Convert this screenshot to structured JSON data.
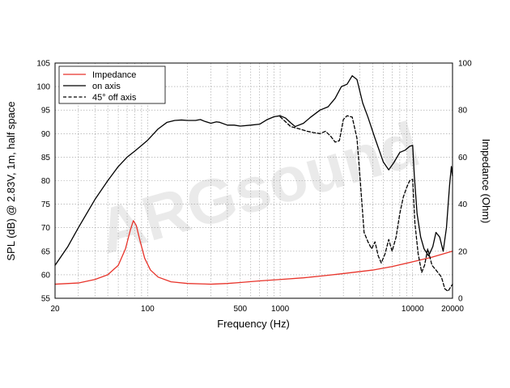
{
  "chart_data": {
    "type": "line",
    "xlabel": "Frequency (Hz)",
    "ylabel_left": "SPL (dB) @ 2.83V, 1m, half space",
    "ylabel_right": "Impedance (Ohm)",
    "xscale": "log",
    "xlim": [
      20,
      20000
    ],
    "ylim_left": [
      55,
      105
    ],
    "ylim_right": [
      0,
      100
    ],
    "x_tick_labels": [
      "20",
      "100",
      "500",
      "1000",
      "10000",
      "20000"
    ],
    "x_tick_values": [
      20,
      100,
      500,
      1000,
      10000,
      20000
    ],
    "y_left_ticks": [
      "55",
      "60",
      "65",
      "70",
      "75",
      "80",
      "85",
      "90",
      "95",
      "100",
      "105"
    ],
    "y_right_ticks": [
      "0",
      "20",
      "40",
      "60",
      "80",
      "100"
    ],
    "grid": true,
    "legend_placement": "top-left",
    "watermark": "ARGsound",
    "series": [
      {
        "name": "Impedance",
        "axis": "right",
        "color": "#e8332a",
        "style": "solid",
        "points": [
          [
            20,
            6
          ],
          [
            30,
            6.5
          ],
          [
            40,
            8
          ],
          [
            50,
            10
          ],
          [
            60,
            14
          ],
          [
            68,
            21
          ],
          [
            74,
            29
          ],
          [
            78,
            33
          ],
          [
            82,
            31
          ],
          [
            88,
            24
          ],
          [
            95,
            17
          ],
          [
            105,
            12
          ],
          [
            120,
            9
          ],
          [
            150,
            7
          ],
          [
            200,
            6.3
          ],
          [
            300,
            6
          ],
          [
            400,
            6.3
          ],
          [
            500,
            6.7
          ],
          [
            700,
            7.4
          ],
          [
            1000,
            8
          ],
          [
            1500,
            8.7
          ],
          [
            2000,
            9.4
          ],
          [
            3000,
            10.5
          ],
          [
            5000,
            12
          ],
          [
            7000,
            13.5
          ],
          [
            10000,
            15.5
          ],
          [
            14000,
            17.5
          ],
          [
            20000,
            20
          ]
        ]
      },
      {
        "name": "on axis",
        "axis": "left",
        "color": "#000000",
        "style": "solid",
        "points": [
          [
            20,
            62
          ],
          [
            25,
            66
          ],
          [
            30,
            70
          ],
          [
            40,
            76
          ],
          [
            50,
            80
          ],
          [
            60,
            83
          ],
          [
            70,
            85
          ],
          [
            80,
            86.3
          ],
          [
            90,
            87.5
          ],
          [
            100,
            88.6
          ],
          [
            120,
            91
          ],
          [
            140,
            92.4
          ],
          [
            160,
            92.8
          ],
          [
            180,
            92.9
          ],
          [
            200,
            92.8
          ],
          [
            230,
            92.8
          ],
          [
            250,
            93
          ],
          [
            270,
            92.6
          ],
          [
            300,
            92.2
          ],
          [
            330,
            92.5
          ],
          [
            350,
            92.4
          ],
          [
            400,
            91.8
          ],
          [
            450,
            91.8
          ],
          [
            500,
            91.6
          ],
          [
            600,
            91.8
          ],
          [
            700,
            92
          ],
          [
            800,
            93
          ],
          [
            900,
            93.6
          ],
          [
            1000,
            93.8
          ],
          [
            1100,
            93.3
          ],
          [
            1200,
            92.3
          ],
          [
            1300,
            91.5
          ],
          [
            1500,
            92.2
          ],
          [
            1700,
            93.5
          ],
          [
            2000,
            95
          ],
          [
            2300,
            95.7
          ],
          [
            2600,
            97.5
          ],
          [
            2900,
            100
          ],
          [
            3200,
            100.5
          ],
          [
            3500,
            102.3
          ],
          [
            3800,
            101.5
          ],
          [
            4200,
            96.5
          ],
          [
            4600,
            93.5
          ],
          [
            5200,
            89
          ],
          [
            6000,
            84
          ],
          [
            6600,
            82.3
          ],
          [
            7200,
            83.8
          ],
          [
            8000,
            86
          ],
          [
            8800,
            86.5
          ],
          [
            9500,
            87.3
          ],
          [
            10000,
            87.5
          ],
          [
            10300,
            81
          ],
          [
            10800,
            73
          ],
          [
            11500,
            68
          ],
          [
            12200,
            65.5
          ],
          [
            13200,
            64
          ],
          [
            14200,
            66
          ],
          [
            15000,
            69
          ],
          [
            16000,
            68
          ],
          [
            17000,
            65
          ],
          [
            18000,
            70
          ],
          [
            19000,
            79
          ],
          [
            19600,
            83
          ],
          [
            20000,
            81
          ]
        ]
      },
      {
        "name": "45° off axis",
        "axis": "left",
        "color": "#000000",
        "style": "dashed",
        "points": [
          [
            1000,
            93.6
          ],
          [
            1100,
            92.5
          ],
          [
            1200,
            91.5
          ],
          [
            1400,
            91
          ],
          [
            1600,
            90.5
          ],
          [
            1800,
            90.2
          ],
          [
            2000,
            90
          ],
          [
            2200,
            90.5
          ],
          [
            2400,
            89.5
          ],
          [
            2600,
            88.2
          ],
          [
            2800,
            88.5
          ],
          [
            3000,
            93
          ],
          [
            3200,
            93.8
          ],
          [
            3500,
            93.5
          ],
          [
            3800,
            89
          ],
          [
            4000,
            81
          ],
          [
            4300,
            69
          ],
          [
            4600,
            67
          ],
          [
            4900,
            65.5
          ],
          [
            5200,
            67
          ],
          [
            5500,
            64
          ],
          [
            5800,
            62.5
          ],
          [
            6200,
            64.5
          ],
          [
            6600,
            67.5
          ],
          [
            7000,
            65
          ],
          [
            7500,
            68
          ],
          [
            8000,
            73
          ],
          [
            8500,
            76.5
          ],
          [
            9000,
            78.5
          ],
          [
            9500,
            80
          ],
          [
            10000,
            80.3
          ],
          [
            10400,
            71
          ],
          [
            11000,
            64.5
          ],
          [
            11700,
            60.5
          ],
          [
            12300,
            62
          ],
          [
            13000,
            65.5
          ],
          [
            14000,
            62
          ],
          [
            15000,
            61
          ],
          [
            16500,
            59.5
          ],
          [
            17500,
            57
          ],
          [
            18500,
            56.5
          ],
          [
            20000,
            58
          ]
        ]
      }
    ]
  }
}
